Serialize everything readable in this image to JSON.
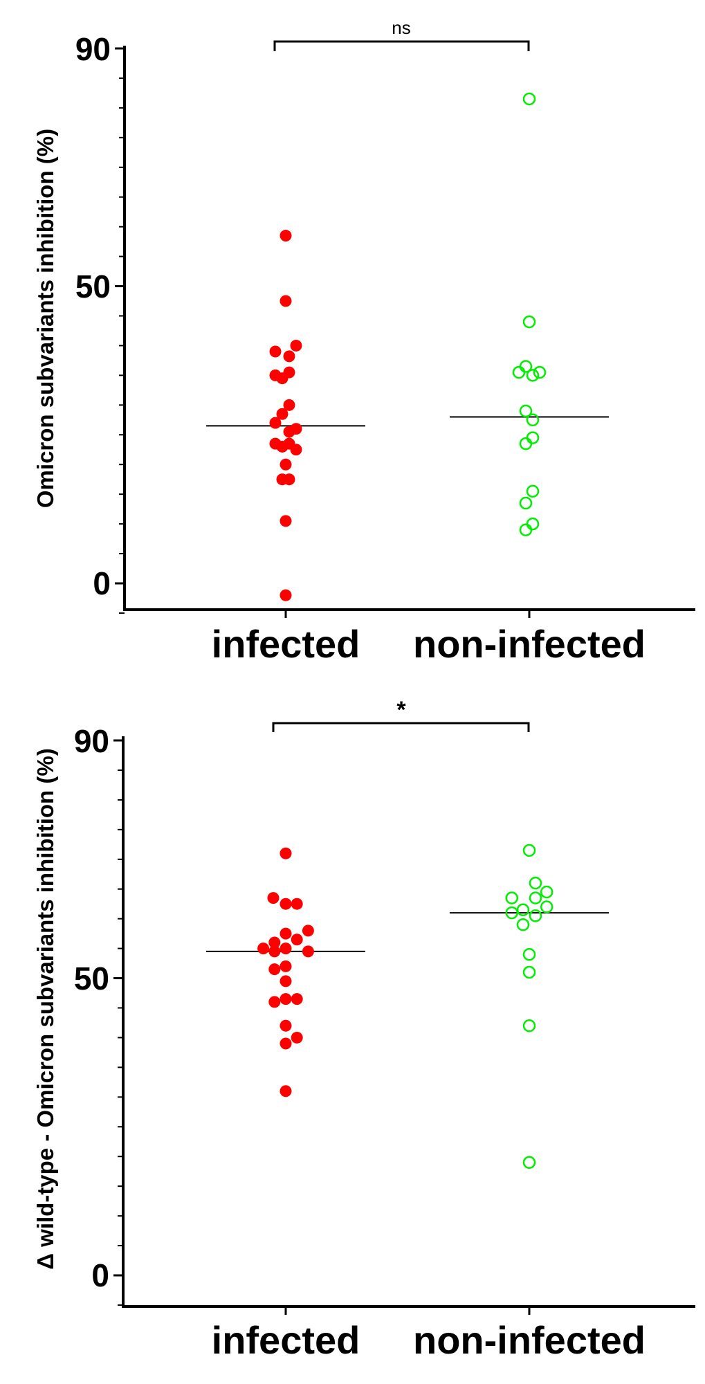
{
  "colors": {
    "infected": "#ff0000",
    "non_infected": "#00ee00",
    "axis": "#000000",
    "median": "#000000"
  },
  "chart_data": [
    {
      "type": "scatter",
      "ylabel": "Omicron subvariants inhibition (%)",
      "yticks": [
        "90",
        "50",
        "0"
      ],
      "ylim": [
        -5,
        90
      ],
      "categories": [
        "infected",
        "non-infected"
      ],
      "series": [
        {
          "name": "infected",
          "marker": "filled-circle",
          "median": 26.5,
          "points": [
            {
              "x": 0.0,
              "y": 58.5
            },
            {
              "x": 0.0,
              "y": 47.5
            },
            {
              "x": -0.15,
              "y": 39.0
            },
            {
              "x": 0.05,
              "y": 38.2
            },
            {
              "x": 0.15,
              "y": 40.0
            },
            {
              "x": -0.15,
              "y": 35.0
            },
            {
              "x": -0.05,
              "y": 34.5
            },
            {
              "x": 0.05,
              "y": 35.5
            },
            {
              "x": -0.15,
              "y": 27.0
            },
            {
              "x": -0.05,
              "y": 28.5
            },
            {
              "x": 0.05,
              "y": 30.0
            },
            {
              "x": 0.05,
              "y": 25.5
            },
            {
              "x": 0.15,
              "y": 26.0
            },
            {
              "x": -0.15,
              "y": 23.5
            },
            {
              "x": -0.05,
              "y": 23.0
            },
            {
              "x": 0.05,
              "y": 23.5
            },
            {
              "x": 0.15,
              "y": 22.5
            },
            {
              "x": 0.0,
              "y": 20.0
            },
            {
              "x": -0.05,
              "y": 17.5
            },
            {
              "x": 0.05,
              "y": 17.5
            },
            {
              "x": 0.0,
              "y": 10.5
            },
            {
              "x": 0.0,
              "y": -2.0
            }
          ]
        },
        {
          "name": "non-infected",
          "marker": "open-circle",
          "median": 28.0,
          "points": [
            {
              "x": 0.0,
              "y": 81.5
            },
            {
              "x": 0.0,
              "y": 44.0
            },
            {
              "x": -0.15,
              "y": 35.5
            },
            {
              "x": -0.05,
              "y": 36.5
            },
            {
              "x": 0.05,
              "y": 35.0
            },
            {
              "x": 0.15,
              "y": 35.5
            },
            {
              "x": -0.05,
              "y": 29.0
            },
            {
              "x": 0.05,
              "y": 27.5
            },
            {
              "x": -0.05,
              "y": 23.5
            },
            {
              "x": 0.05,
              "y": 24.5
            },
            {
              "x": 0.05,
              "y": 15.5
            },
            {
              "x": -0.05,
              "y": 13.5
            },
            {
              "x": 0.05,
              "y": 10.0
            },
            {
              "x": -0.05,
              "y": 9.0
            }
          ]
        }
      ],
      "significance": {
        "label": "ns",
        "between": [
          "infected",
          "non-infected"
        ]
      }
    },
    {
      "type": "scatter",
      "ylabel": "Δ wild-type - Omicron subvariants inhibition (%)",
      "yticks": [
        "90",
        "50",
        "0"
      ],
      "ylim": [
        -5,
        90
      ],
      "categories": [
        "infected",
        "non-infected"
      ],
      "series": [
        {
          "name": "infected",
          "marker": "filled-circle",
          "median": 54.5,
          "points": [
            {
              "x": 0.0,
              "y": 71.0
            },
            {
              "x": -0.1,
              "y": 63.5
            },
            {
              "x": 0.0,
              "y": 62.5
            },
            {
              "x": 0.09,
              "y": 62.5
            },
            {
              "x": 0.18,
              "y": 58.0
            },
            {
              "x": 0.0,
              "y": 57.5
            },
            {
              "x": -0.09,
              "y": 56.0
            },
            {
              "x": 0.09,
              "y": 56.5
            },
            {
              "x": -0.18,
              "y": 55.0
            },
            {
              "x": -0.09,
              "y": 54.5
            },
            {
              "x": 0.0,
              "y": 55.0
            },
            {
              "x": 0.18,
              "y": 54.5
            },
            {
              "x": -0.09,
              "y": 51.5
            },
            {
              "x": 0.0,
              "y": 52.0
            },
            {
              "x": 0.0,
              "y": 49.5
            },
            {
              "x": -0.09,
              "y": 46.0
            },
            {
              "x": 0.0,
              "y": 46.5
            },
            {
              "x": 0.09,
              "y": 46.5
            },
            {
              "x": 0.0,
              "y": 42.0
            },
            {
              "x": 0.09,
              "y": 40.0
            },
            {
              "x": 0.0,
              "y": 39.0
            },
            {
              "x": 0.0,
              "y": 31.0
            }
          ]
        },
        {
          "name": "non-infected",
          "marker": "open-circle",
          "median": 61.0,
          "points": [
            {
              "x": 0.0,
              "y": 71.5
            },
            {
              "x": 0.05,
              "y": 66.0
            },
            {
              "x": -0.14,
              "y": 63.5
            },
            {
              "x": 0.05,
              "y": 63.5
            },
            {
              "x": 0.14,
              "y": 64.5
            },
            {
              "x": -0.05,
              "y": 61.5
            },
            {
              "x": -0.14,
              "y": 61.0
            },
            {
              "x": 0.05,
              "y": 60.5
            },
            {
              "x": 0.14,
              "y": 62.0
            },
            {
              "x": -0.05,
              "y": 59.0
            },
            {
              "x": 0.0,
              "y": 54.0
            },
            {
              "x": 0.0,
              "y": 51.0
            },
            {
              "x": 0.0,
              "y": 42.0
            },
            {
              "x": 0.0,
              "y": 19.0
            }
          ]
        }
      ],
      "significance": {
        "label": "*",
        "between": [
          "infected",
          "non-infected"
        ]
      }
    }
  ]
}
